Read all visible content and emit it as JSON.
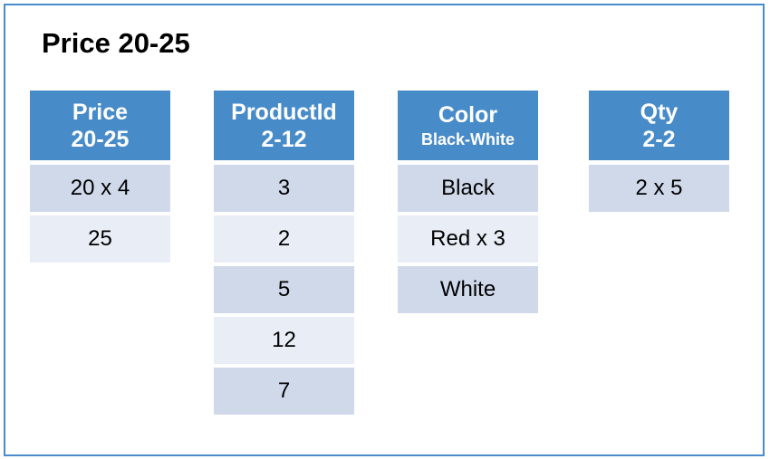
{
  "title": "Price 20-25",
  "colors": {
    "header": "#488bc9",
    "row_dark": "#cfd9ea",
    "row_light": "#e8edf6",
    "border": "#4a8bc9"
  },
  "columns": [
    {
      "name": "Price",
      "range": "20-25",
      "cells": [
        "20 x 4",
        "25"
      ]
    },
    {
      "name": "ProductId",
      "range": "2-12",
      "cells": [
        "3",
        "2",
        "5",
        "12",
        "7"
      ]
    },
    {
      "name": "Color",
      "range": "Black-White",
      "cells": [
        "Black",
        "Red x 3",
        "White"
      ]
    },
    {
      "name": "Qty",
      "range": "2-2",
      "cells": [
        "2 x 5"
      ]
    }
  ]
}
